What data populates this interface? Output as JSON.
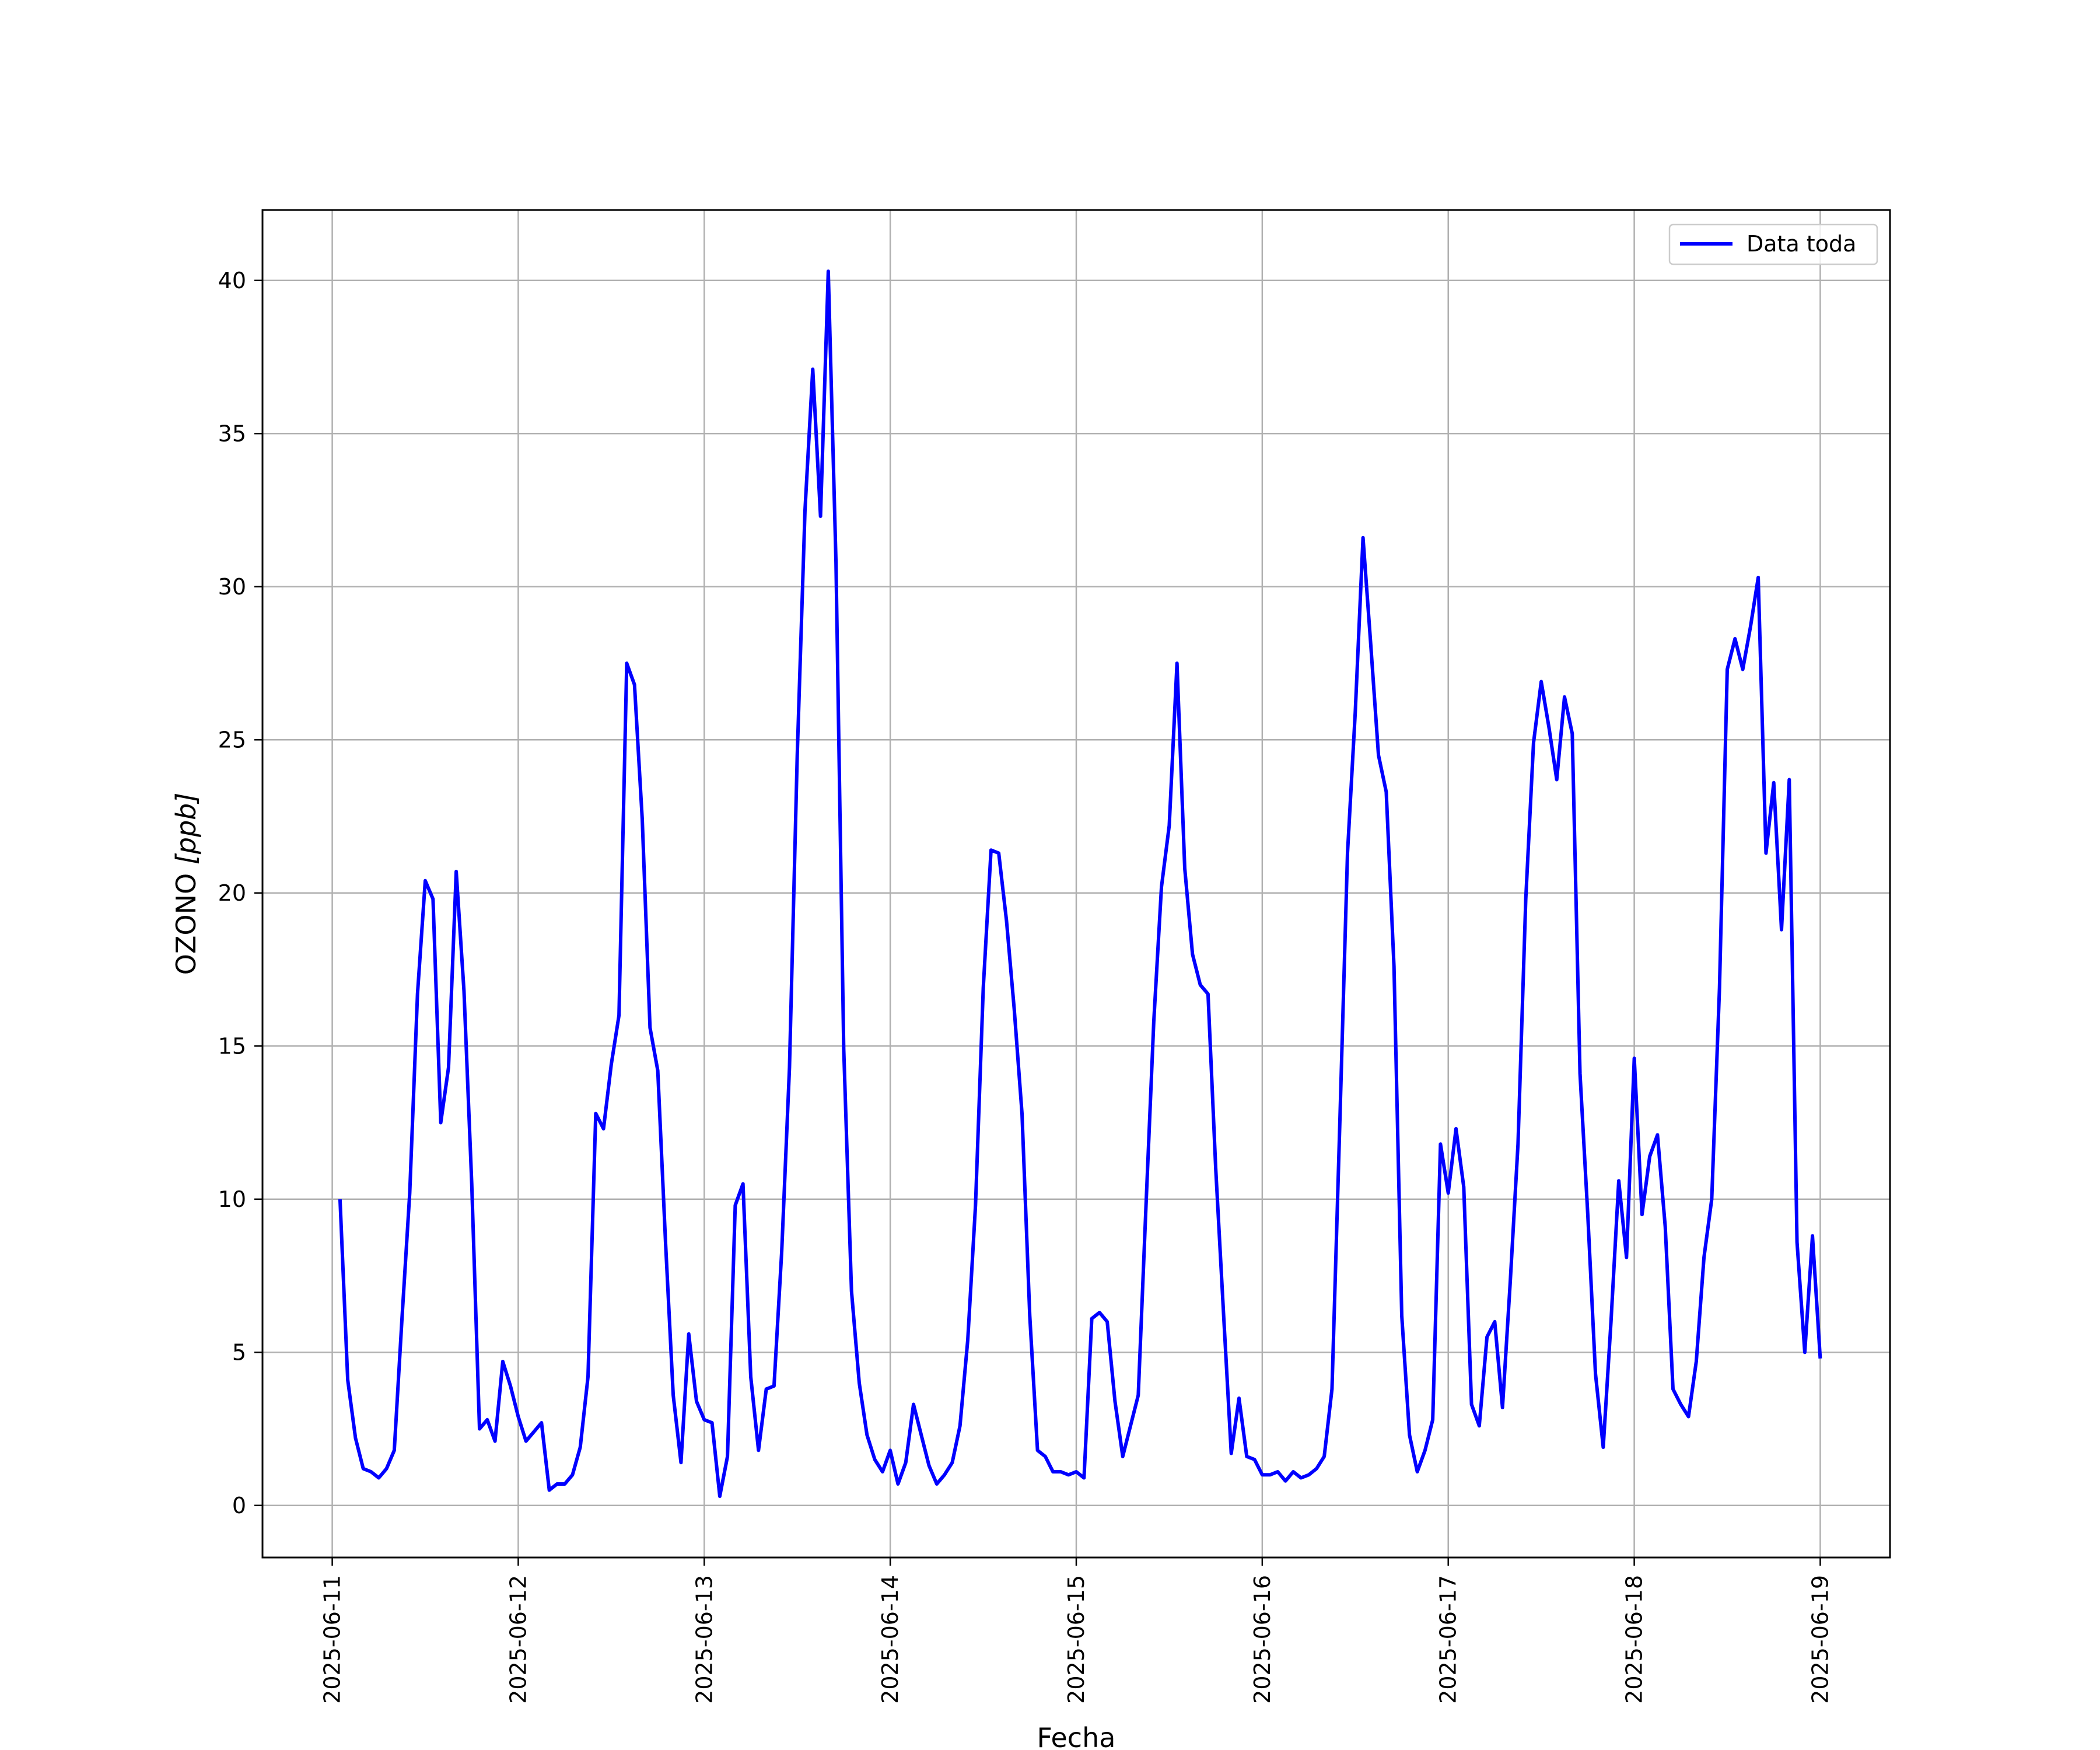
{
  "chart_data": {
    "type": "line",
    "title": "",
    "xlabel": "Fecha",
    "ylabel_text": "OZONO ",
    "ylabel_unit": "[ppb]",
    "x_start": "2025-06-11 00:00",
    "x_end": "2025-06-19 00:00",
    "xlim": [
      "2025-06-10 15:00",
      "2025-06-19 09:00"
    ],
    "ylim": [
      -1.7,
      42.3
    ],
    "x_ticks": [
      "2025-06-11",
      "2025-06-12",
      "2025-06-13",
      "2025-06-14",
      "2025-06-15",
      "2025-06-16",
      "2025-06-17",
      "2025-06-18",
      "2025-06-19"
    ],
    "y_ticks": [
      0,
      5,
      10,
      15,
      20,
      25,
      30,
      35,
      40
    ],
    "grid": true,
    "legend_position": "upper right",
    "series": [
      {
        "name": "Data toda",
        "color": "#0000ff",
        "x": [
          "2025-06-11 01:00",
          "2025-06-11 02:00",
          "2025-06-11 03:00",
          "2025-06-11 04:00",
          "2025-06-11 05:00",
          "2025-06-11 06:00",
          "2025-06-11 07:00",
          "2025-06-11 08:00",
          "2025-06-11 09:00",
          "2025-06-11 10:00",
          "2025-06-11 11:00",
          "2025-06-11 12:00",
          "2025-06-11 13:00",
          "2025-06-11 14:00",
          "2025-06-11 15:00",
          "2025-06-11 16:00",
          "2025-06-11 17:00",
          "2025-06-11 18:00",
          "2025-06-11 19:00",
          "2025-06-11 20:00",
          "2025-06-11 21:00",
          "2025-06-11 22:00",
          "2025-06-11 23:00",
          "2025-06-12 00:00",
          "2025-06-12 01:00",
          "2025-06-12 02:00",
          "2025-06-12 03:00",
          "2025-06-12 04:00",
          "2025-06-12 05:00",
          "2025-06-12 06:00",
          "2025-06-12 07:00",
          "2025-06-12 08:00",
          "2025-06-12 09:00",
          "2025-06-12 10:00",
          "2025-06-12 11:00",
          "2025-06-12 12:00",
          "2025-06-12 13:00",
          "2025-06-12 14:00",
          "2025-06-12 15:00",
          "2025-06-12 16:00",
          "2025-06-12 17:00",
          "2025-06-12 18:00",
          "2025-06-12 19:00",
          "2025-06-12 20:00",
          "2025-06-12 21:00",
          "2025-06-12 22:00",
          "2025-06-12 23:00",
          "2025-06-13 00:00",
          "2025-06-13 01:00",
          "2025-06-13 02:00",
          "2025-06-13 03:00",
          "2025-06-13 04:00",
          "2025-06-13 05:00",
          "2025-06-13 06:00",
          "2025-06-13 07:00",
          "2025-06-13 08:00",
          "2025-06-13 09:00",
          "2025-06-13 10:00",
          "2025-06-13 11:00",
          "2025-06-13 12:00",
          "2025-06-13 13:00",
          "2025-06-13 14:00",
          "2025-06-13 15:00",
          "2025-06-13 16:00",
          "2025-06-13 17:00",
          "2025-06-13 18:00",
          "2025-06-13 19:00",
          "2025-06-13 20:00",
          "2025-06-13 21:00",
          "2025-06-13 22:00",
          "2025-06-13 23:00",
          "2025-06-14 00:00",
          "2025-06-14 01:00",
          "2025-06-14 02:00",
          "2025-06-14 03:00",
          "2025-06-14 04:00",
          "2025-06-14 05:00",
          "2025-06-14 06:00",
          "2025-06-14 07:00",
          "2025-06-14 08:00",
          "2025-06-14 09:00",
          "2025-06-14 10:00",
          "2025-06-14 11:00",
          "2025-06-14 12:00",
          "2025-06-14 13:00",
          "2025-06-14 14:00",
          "2025-06-14 15:00",
          "2025-06-14 16:00",
          "2025-06-14 17:00",
          "2025-06-14 18:00",
          "2025-06-14 19:00",
          "2025-06-14 20:00",
          "2025-06-14 21:00",
          "2025-06-14 22:00",
          "2025-06-14 23:00",
          "2025-06-15 00:00",
          "2025-06-15 01:00",
          "2025-06-15 02:00",
          "2025-06-15 03:00",
          "2025-06-15 04:00",
          "2025-06-15 05:00",
          "2025-06-15 06:00",
          "2025-06-15 07:00",
          "2025-06-15 08:00",
          "2025-06-15 09:00",
          "2025-06-15 10:00",
          "2025-06-15 11:00",
          "2025-06-15 12:00",
          "2025-06-15 13:00",
          "2025-06-15 14:00",
          "2025-06-15 15:00",
          "2025-06-15 16:00",
          "2025-06-15 17:00",
          "2025-06-15 18:00",
          "2025-06-15 19:00",
          "2025-06-15 20:00",
          "2025-06-15 21:00",
          "2025-06-15 22:00",
          "2025-06-15 23:00",
          "2025-06-16 00:00",
          "2025-06-16 01:00",
          "2025-06-16 02:00",
          "2025-06-16 03:00",
          "2025-06-16 04:00",
          "2025-06-16 05:00",
          "2025-06-16 06:00",
          "2025-06-16 07:00",
          "2025-06-16 08:00",
          "2025-06-16 09:00",
          "2025-06-16 10:00",
          "2025-06-16 11:00",
          "2025-06-16 12:00",
          "2025-06-16 13:00",
          "2025-06-16 14:00",
          "2025-06-16 15:00",
          "2025-06-16 16:00",
          "2025-06-16 17:00",
          "2025-06-16 18:00",
          "2025-06-16 19:00",
          "2025-06-16 20:00",
          "2025-06-16 21:00",
          "2025-06-16 22:00",
          "2025-06-16 23:00",
          "2025-06-17 00:00",
          "2025-06-17 01:00",
          "2025-06-17 02:00",
          "2025-06-17 03:00",
          "2025-06-17 04:00",
          "2025-06-17 05:00",
          "2025-06-17 06:00",
          "2025-06-17 07:00",
          "2025-06-17 08:00",
          "2025-06-17 09:00",
          "2025-06-17 10:00",
          "2025-06-17 11:00",
          "2025-06-17 12:00",
          "2025-06-17 13:00",
          "2025-06-17 14:00",
          "2025-06-17 15:00",
          "2025-06-17 16:00",
          "2025-06-17 17:00",
          "2025-06-17 18:00",
          "2025-06-17 19:00",
          "2025-06-17 20:00",
          "2025-06-17 21:00",
          "2025-06-17 22:00",
          "2025-06-17 23:00",
          "2025-06-18 00:00",
          "2025-06-18 01:00",
          "2025-06-18 02:00",
          "2025-06-18 03:00",
          "2025-06-18 04:00",
          "2025-06-18 05:00",
          "2025-06-18 06:00",
          "2025-06-18 07:00",
          "2025-06-18 08:00",
          "2025-06-18 09:00",
          "2025-06-18 10:00",
          "2025-06-18 11:00",
          "2025-06-18 12:00",
          "2025-06-18 13:00",
          "2025-06-18 14:00",
          "2025-06-18 15:00",
          "2025-06-18 16:00",
          "2025-06-18 17:00",
          "2025-06-18 18:00",
          "2025-06-18 19:00",
          "2025-06-18 20:00",
          "2025-06-18 21:00",
          "2025-06-18 22:00",
          "2025-06-18 23:00",
          "2025-06-19 00:00"
        ],
        "y": [
          10.0,
          4.1,
          2.2,
          1.2,
          1.1,
          0.9,
          1.2,
          1.8,
          6.1,
          10.2,
          16.7,
          20.4,
          19.8,
          12.5,
          14.3,
          20.7,
          16.8,
          10.5,
          2.5,
          2.8,
          2.1,
          4.7,
          3.9,
          2.9,
          2.1,
          2.4,
          2.7,
          0.5,
          0.7,
          0.7,
          1.0,
          1.9,
          4.2,
          12.8,
          12.3,
          14.4,
          16.0,
          27.5,
          26.8,
          22.4,
          15.6,
          14.2,
          8.6,
          3.6,
          1.4,
          5.6,
          3.4,
          2.8,
          2.7,
          0.3,
          1.6,
          9.8,
          10.5,
          4.2,
          1.8,
          3.8,
          3.9,
          8.3,
          14.3,
          24.5,
          32.5,
          37.1,
          32.3,
          40.3,
          30.8,
          14.9,
          7.0,
          4.0,
          2.3,
          1.5,
          1.1,
          1.8,
          0.7,
          1.4,
          3.3,
          2.3,
          1.3,
          0.7,
          1.0,
          1.4,
          2.6,
          5.4,
          9.8,
          16.9,
          21.4,
          21.3,
          19.1,
          16.2,
          12.8,
          6.2,
          1.8,
          1.6,
          1.1,
          1.1,
          1.0,
          1.1,
          0.9,
          6.1,
          6.3,
          6.0,
          3.4,
          1.6,
          2.6,
          3.6,
          9.8,
          15.8,
          20.2,
          22.2,
          27.5,
          20.8,
          18.0,
          17.0,
          16.7,
          11.0,
          6.3,
          1.7,
          3.5,
          1.6,
          1.5,
          1.0,
          1.0,
          1.1,
          0.8,
          1.1,
          0.9,
          1.0,
          1.2,
          1.6,
          3.8,
          12.4,
          21.3,
          25.9,
          31.6,
          28.1,
          24.5,
          23.3,
          17.6,
          6.2,
          2.3,
          1.1,
          1.8,
          2.8,
          11.8,
          10.2,
          12.3,
          10.4,
          3.3,
          2.6,
          5.5,
          6.0,
          3.2,
          7.3,
          11.8,
          19.8,
          24.9,
          26.9,
          25.4,
          23.7,
          26.4,
          25.2,
          14.1,
          9.5,
          4.3,
          1.9,
          6.0,
          10.6,
          8.1,
          14.6,
          9.5,
          11.4,
          12.1,
          9.1,
          3.8,
          3.3,
          2.9,
          4.7,
          8.1,
          10.0,
          16.9,
          27.3,
          28.3,
          27.3,
          28.7,
          30.3,
          21.3,
          23.6,
          18.8,
          23.7,
          8.6,
          5.0,
          8.8,
          4.8
        ]
      }
    ]
  }
}
